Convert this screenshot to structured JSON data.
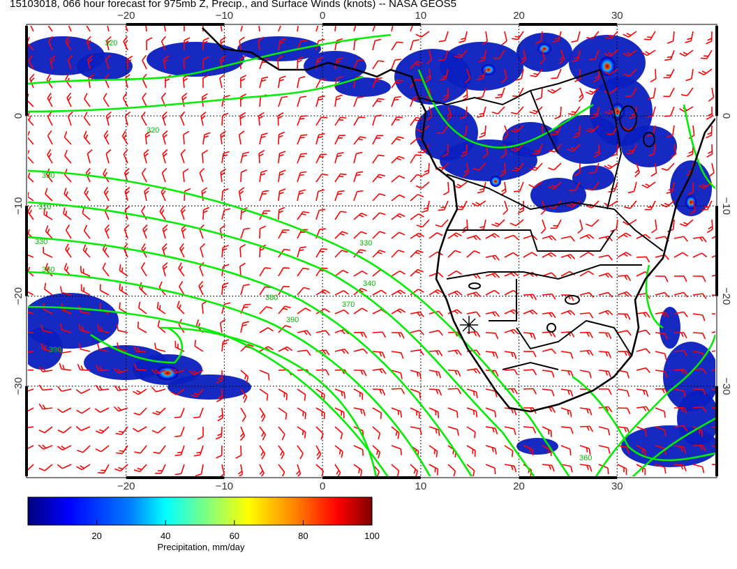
{
  "title": "15103018, 066 hour forecast for 975mb Z, Precip., and Surface Winds (knots) -- NASA GEOS5",
  "map": {
    "projection": "cylindrical",
    "lon_range": [
      -30,
      40
    ],
    "lat_range": [
      -40,
      10
    ],
    "lon_ticks": [
      "−20",
      "−10",
      "0",
      "10",
      "20",
      "30"
    ],
    "lat_ticks": [
      "0",
      "−10",
      "−20",
      "−30"
    ],
    "grid": true,
    "grid_style": "dotted",
    "layers": [
      "precipitation",
      "975mb-height-contours",
      "surface-wind-barbs",
      "coastlines",
      "country-borders"
    ],
    "contour_color": "#00ee00",
    "barb_color": "#ff0000",
    "boundary_color": "#000000",
    "contour_labels": [
      "320",
      "330",
      "340",
      "350",
      "360",
      "370",
      "380",
      "390"
    ],
    "marker_icon": "asterisk-marker"
  },
  "colorbar": {
    "label": "Precipitation, mm/day",
    "ticks": [
      "20",
      "40",
      "60",
      "80",
      "100"
    ],
    "range": [
      0,
      100
    ],
    "colors": [
      "#00007f",
      "#0000ff",
      "#007fff",
      "#00ffff",
      "#7fff7f",
      "#ffff00",
      "#ff7f00",
      "#ff0000",
      "#7f0000"
    ]
  }
}
